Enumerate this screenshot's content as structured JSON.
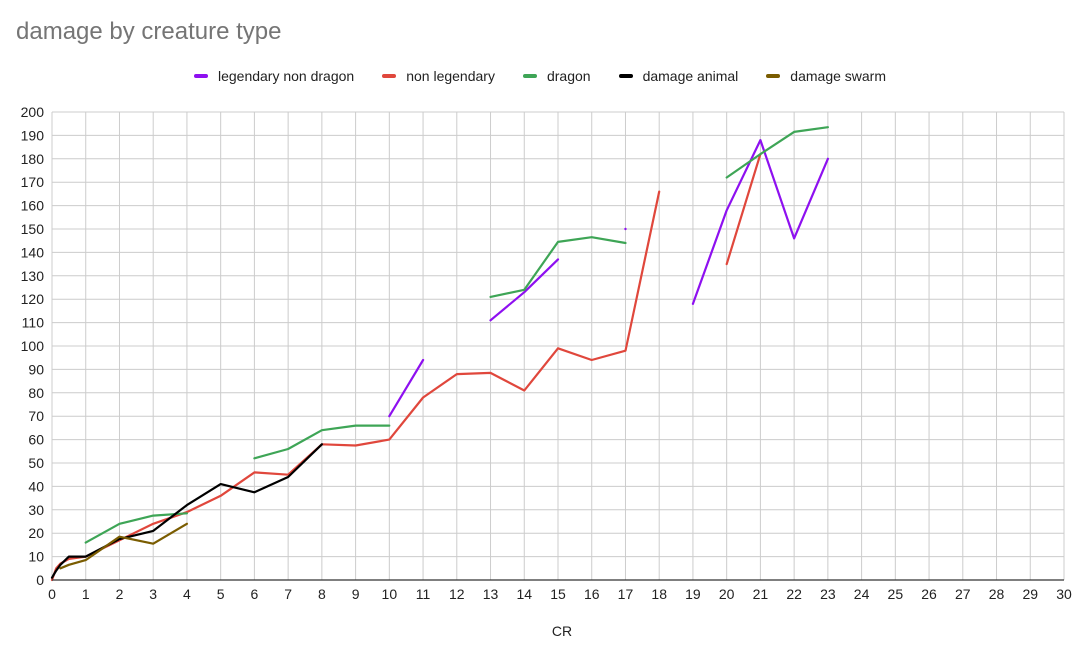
{
  "chart_data": {
    "type": "line",
    "title": "damage by creature type",
    "xlabel": "CR",
    "ylabel": "",
    "xlim": [
      0,
      30
    ],
    "ylim": [
      0,
      200
    ],
    "xticks": [
      0,
      1,
      2,
      3,
      4,
      5,
      6,
      7,
      8,
      9,
      10,
      11,
      12,
      13,
      14,
      15,
      16,
      17,
      18,
      19,
      20,
      21,
      22,
      23,
      24,
      25,
      26,
      27,
      28,
      29,
      30
    ],
    "yticks": [
      0,
      10,
      20,
      30,
      40,
      50,
      60,
      70,
      80,
      90,
      100,
      110,
      120,
      130,
      140,
      150,
      160,
      170,
      180,
      190,
      200
    ],
    "grid": true,
    "legend_position": "top",
    "series": [
      {
        "name": "legendary non dragon",
        "color": "#8e10f0",
        "points": [
          [
            10,
            70
          ],
          [
            11,
            94
          ],
          null,
          [
            13,
            111
          ],
          [
            14,
            123
          ],
          [
            15,
            137
          ],
          null,
          [
            17,
            150
          ],
          null,
          [
            19,
            118
          ],
          [
            20,
            158
          ],
          [
            21,
            188
          ],
          [
            22,
            146
          ],
          [
            23,
            180
          ]
        ]
      },
      {
        "name": "non legendary",
        "color": "#e0473c",
        "points": [
          [
            0,
            0
          ],
          [
            0.125,
            5
          ],
          [
            0.25,
            7
          ],
          [
            0.5,
            9
          ],
          [
            1,
            10
          ],
          [
            2,
            17
          ],
          [
            3,
            24
          ],
          [
            4,
            29
          ],
          [
            5,
            36
          ],
          [
            6,
            46
          ],
          [
            7,
            45
          ],
          [
            8,
            58
          ],
          [
            9,
            57.5
          ],
          [
            10,
            60
          ],
          [
            11,
            78
          ],
          [
            12,
            88
          ],
          [
            13,
            88.5
          ],
          [
            14,
            81
          ],
          [
            15,
            99
          ],
          [
            16,
            94
          ],
          [
            17,
            98
          ],
          [
            18,
            166
          ],
          null,
          [
            20,
            135
          ],
          [
            21,
            182
          ]
        ]
      },
      {
        "name": "dragon",
        "color": "#3ea556",
        "points": [
          [
            1,
            16
          ],
          [
            2,
            24
          ],
          [
            3,
            27.5
          ],
          [
            4,
            28.5
          ],
          null,
          [
            6,
            52
          ],
          [
            7,
            56
          ],
          [
            8,
            64
          ],
          [
            9,
            66
          ],
          [
            10,
            66
          ],
          null,
          [
            13,
            121
          ],
          [
            14,
            124
          ],
          [
            15,
            144.5
          ],
          [
            16,
            146.5
          ],
          [
            17,
            144
          ],
          null,
          [
            20,
            172
          ],
          [
            21,
            182
          ],
          [
            22,
            191.5
          ],
          [
            23,
            193.5
          ]
        ]
      },
      {
        "name": "damage animal",
        "color": "#000000",
        "points": [
          [
            0,
            1
          ],
          [
            0.125,
            4
          ],
          [
            0.25,
            6.5
          ],
          [
            0.5,
            10
          ],
          [
            1,
            10
          ],
          [
            2,
            17.5
          ],
          [
            3,
            21
          ],
          [
            4,
            32
          ],
          [
            5,
            41
          ],
          [
            6,
            37.5
          ],
          [
            7,
            44
          ],
          [
            8,
            58
          ]
        ]
      },
      {
        "name": "damage swarm",
        "color": "#7a5c00",
        "points": [
          [
            0.25,
            5
          ],
          [
            0.5,
            6.5
          ],
          [
            1,
            8.5
          ],
          [
            2,
            18.5
          ],
          [
            3,
            15.5
          ],
          [
            4,
            24
          ]
        ]
      }
    ]
  }
}
